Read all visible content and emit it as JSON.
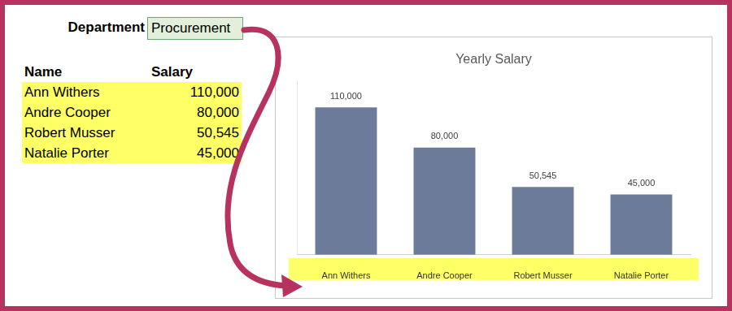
{
  "department": {
    "label": "Department",
    "value": "Procurement"
  },
  "table": {
    "header": [
      "Name",
      "Salary"
    ],
    "rows": [
      [
        "Ann Withers",
        "110,000"
      ],
      [
        "Andre Cooper",
        "80,000"
      ],
      [
        "Robert Musser",
        "50,545"
      ],
      [
        "Natalie Porter",
        "45,000"
      ]
    ]
  },
  "chart_data": {
    "type": "bar",
    "title": "Yearly Salary",
    "categories": [
      "Ann Withers",
      "Andre Cooper",
      "Robert Musser",
      "Natalie Porter"
    ],
    "values": [
      110000,
      80000,
      50545,
      45000
    ],
    "value_labels": [
      "110,000",
      "80,000",
      "50,545",
      "45,000"
    ],
    "color": "#6b7b99",
    "ylim": [
      0,
      130000
    ],
    "grid": false,
    "data_labels": true,
    "tick_labels": "x"
  }
}
